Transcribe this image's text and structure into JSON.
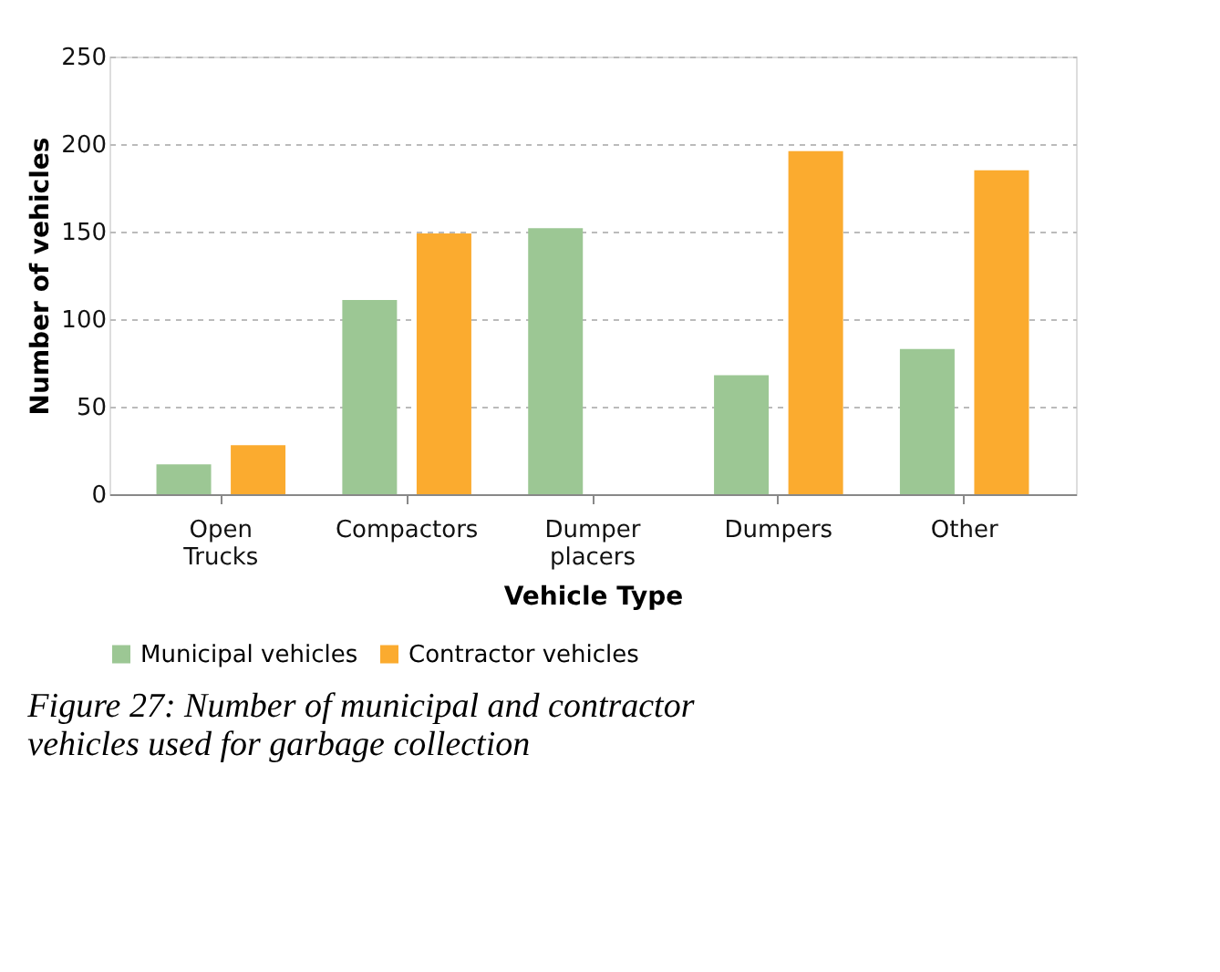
{
  "chart_data": {
    "type": "bar",
    "xlabel": "Vehicle Type",
    "ylabel": "Number of vehicles",
    "categories": [
      "Open Trucks",
      "Compactors",
      "Dumper placers",
      "Dumpers",
      "Other"
    ],
    "series": [
      {
        "name": "Municipal vehicles",
        "color": "#9cc794",
        "values": [
          17,
          111,
          152,
          68,
          83
        ]
      },
      {
        "name": "Contractor vehicles",
        "color": "#fbab2f",
        "values": [
          28,
          149,
          null,
          196,
          185
        ]
      }
    ],
    "ylim": [
      0,
      250
    ],
    "yticks": [
      0,
      50,
      100,
      150,
      200,
      250
    ],
    "grid": "y",
    "legend": "bottom",
    "annotations": [
      "Figure 27: Number of municipal and contractor vehicles used for garbage collection"
    ]
  }
}
